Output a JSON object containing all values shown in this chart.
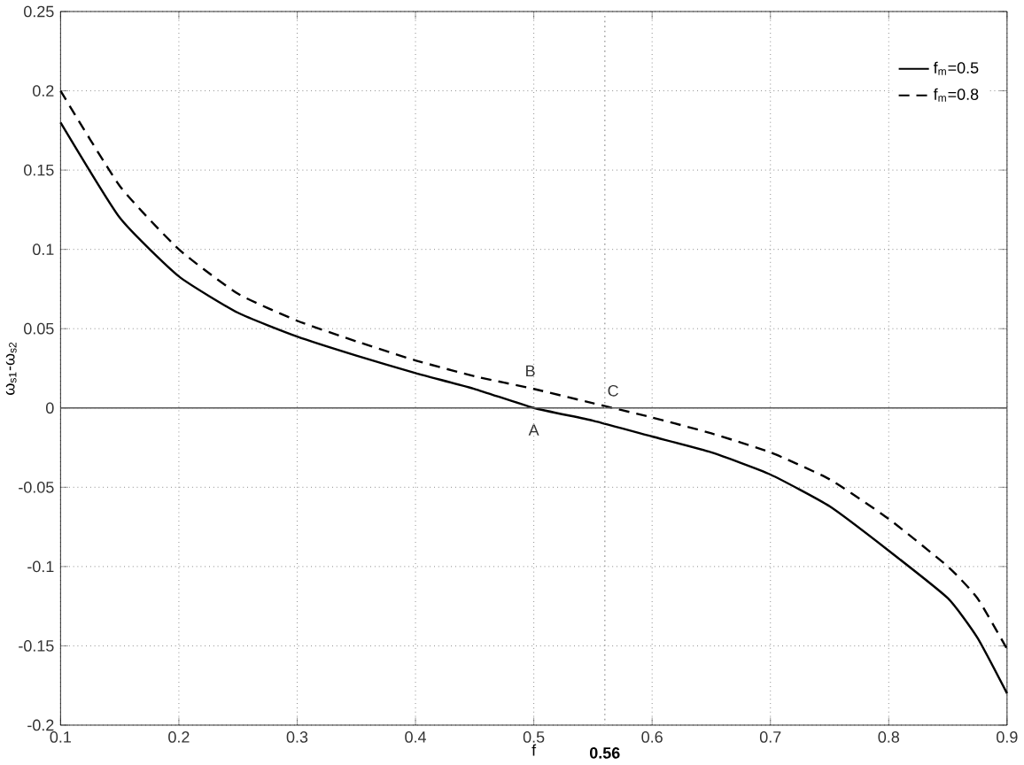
{
  "chart_data": {
    "type": "line",
    "xlabel": "f",
    "ylabel": "ω$_{s1}$-ω$_{s2}$",
    "xlim": [
      0.1,
      0.9
    ],
    "ylim": [
      -0.2,
      0.25
    ],
    "xticks": [
      0.1,
      0.2,
      0.3,
      0.4,
      0.5,
      0.6,
      0.7,
      0.8,
      0.9
    ],
    "yticks": [
      -0.2,
      -0.15,
      -0.1,
      -0.05,
      0,
      0.05,
      0.1,
      0.15,
      0.2,
      0.25
    ],
    "grid": true,
    "legend": "top right",
    "x": [
      0.1,
      0.15,
      0.2,
      0.25,
      0.3,
      0.35,
      0.4,
      0.45,
      0.5,
      0.55,
      0.6,
      0.65,
      0.7,
      0.75,
      0.8,
      0.85,
      0.875,
      0.9
    ],
    "series": [
      {
        "name": "f$_{m}$=0.5",
        "color": "#000000",
        "line_style": "solid",
        "values": [
          0.18,
          0.12,
          0.083,
          0.06,
          0.045,
          0.033,
          0.022,
          0.012,
          0.0,
          -0.008,
          -0.018,
          -0.028,
          -0.042,
          -0.062,
          -0.09,
          -0.12,
          -0.145,
          -0.18
        ]
      },
      {
        "name": "f$_{m}$=0.8",
        "color": "#000000",
        "line_style": "dashed",
        "values": [
          0.2,
          0.14,
          0.1,
          0.072,
          0.055,
          0.042,
          0.03,
          0.02,
          0.012,
          0.003,
          -0.006,
          -0.016,
          -0.028,
          -0.045,
          -0.07,
          -0.1,
          -0.12,
          -0.152
        ]
      }
    ],
    "ref_lines": [
      {
        "axis": "y",
        "value": 0,
        "color": "#555555",
        "line_style": "solid"
      },
      {
        "axis": "x",
        "value": 0.56,
        "label": "0.56",
        "color": "#aaaaaa",
        "line_style": "dotted"
      }
    ],
    "annotations": [
      "A",
      "B",
      "C"
    ]
  }
}
